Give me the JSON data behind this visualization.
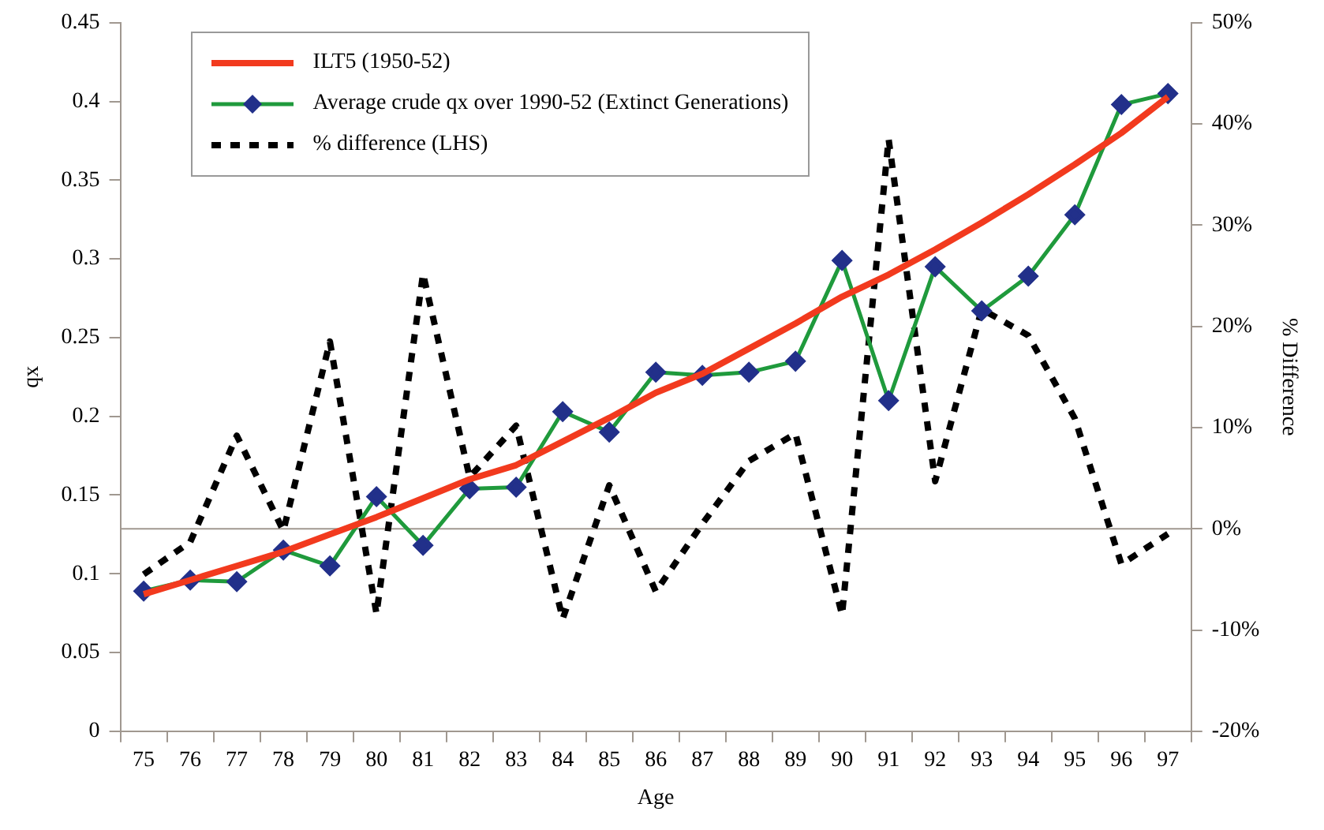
{
  "chart_data": {
    "type": "line",
    "categories": [
      "75",
      "76",
      "77",
      "78",
      "79",
      "80",
      "81",
      "82",
      "83",
      "84",
      "85",
      "86",
      "87",
      "88",
      "89",
      "90",
      "91",
      "92",
      "93",
      "94",
      "95",
      "96",
      "97"
    ],
    "series": [
      {
        "name": "ILT5 (1950-52)",
        "color": "#f23a1e",
        "marker": "none",
        "line_style": "solid",
        "values": [
          0.087,
          0.096,
          0.105,
          0.114,
          0.125,
          0.136,
          0.148,
          0.16,
          0.169,
          0.184,
          0.199,
          0.215,
          0.227,
          0.243,
          0.259,
          0.276,
          0.29,
          0.306,
          0.323,
          0.341,
          0.36,
          0.38,
          0.403
        ]
      },
      {
        "name": "Average crude qx over 1990-52 (Extinct Generations)",
        "color": "#1f9a3c",
        "marker": "diamond",
        "line_style": "solid",
        "values": [
          0.089,
          0.096,
          0.095,
          0.115,
          0.105,
          0.149,
          0.118,
          0.154,
          0.155,
          0.203,
          0.19,
          0.228,
          0.226,
          0.228,
          0.235,
          0.299,
          0.21,
          0.295,
          0.267,
          0.289,
          0.328,
          0.398,
          0.405
        ]
      },
      {
        "name": "% difference (LHS)",
        "color": "#000000",
        "marker": "none",
        "line_style": "dashed",
        "axis": "y2",
        "values": [
          -4.5,
          -1.3,
          9.2,
          -0.2,
          18.5,
          -8.4,
          25.2,
          5.1,
          10.2,
          -8.9,
          4.3,
          -6.2,
          0.5,
          6.7,
          9.4,
          -8.5,
          38.5,
          4.7,
          21.7,
          19.1,
          10.9,
          -3.5,
          -0.5
        ]
      }
    ],
    "xlabel": "Age",
    "ylabel": "qx",
    "y2label": "% Difference",
    "ylim": [
      0,
      0.45
    ],
    "yticks": [
      0,
      0.05,
      0.1,
      0.15,
      0.2,
      0.25,
      0.3,
      0.35,
      0.4,
      0.45
    ],
    "y2lim": [
      -20,
      50
    ],
    "y2ticks": [
      {
        "value": -20,
        "label": "-20%"
      },
      {
        "value": -10,
        "label": "-10%"
      },
      {
        "value": 0,
        "label": "0%"
      },
      {
        "value": 10,
        "label": "10%"
      },
      {
        "value": 20,
        "label": "20%"
      },
      {
        "value": 30,
        "label": "30%"
      },
      {
        "value": 40,
        "label": "40%"
      },
      {
        "value": 50,
        "label": "50%"
      }
    ],
    "ref_lines": [
      {
        "axis": "y2",
        "value": 0,
        "color": "#a09890"
      }
    ],
    "grid": false,
    "legend": "top left"
  }
}
